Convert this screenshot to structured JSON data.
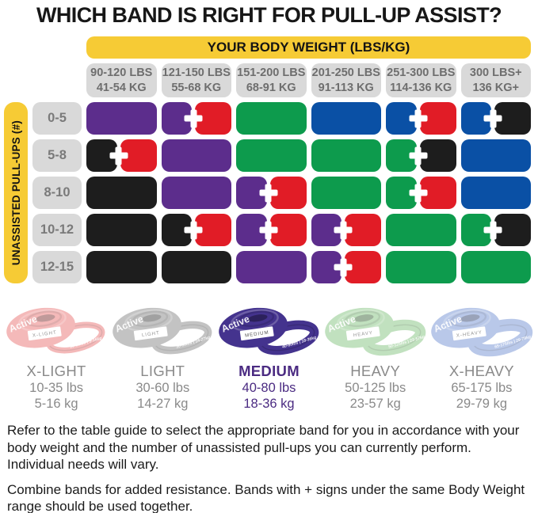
{
  "title": "WHICH BAND IS RIGHT FOR PULL-UP ASSIST?",
  "brand": "Active",
  "table": {
    "header": "YOUR BODY WEIGHT (LBS/KG)",
    "axis_label": "UNASSISTED PULL-UPS (#)",
    "columns": [
      {
        "lbs": "90-120 LBS",
        "kg": "41-54 KG"
      },
      {
        "lbs": "121-150 LBS",
        "kg": "55-68 KG"
      },
      {
        "lbs": "151-200 LBS",
        "kg": "68-91 KG"
      },
      {
        "lbs": "201-250 LBS",
        "kg": "91-113 KG"
      },
      {
        "lbs": "251-300 LBS",
        "kg": "114-136 KG"
      },
      {
        "lbs": "300 LBS+",
        "kg": "136 KG+"
      }
    ],
    "rows": [
      {
        "label": "0-5",
        "cells": [
          [
            "purple"
          ],
          [
            "purple",
            "red"
          ],
          [
            "green"
          ],
          [
            "blue"
          ],
          [
            "blue",
            "red"
          ],
          [
            "blue",
            "black"
          ]
        ]
      },
      {
        "label": "5-8",
        "cells": [
          [
            "black",
            "red"
          ],
          [
            "purple"
          ],
          [
            "green"
          ],
          [
            "green"
          ],
          [
            "green",
            "black"
          ],
          [
            "blue"
          ]
        ]
      },
      {
        "label": "8-10",
        "cells": [
          [
            "black"
          ],
          [
            "purple"
          ],
          [
            "purple",
            "red"
          ],
          [
            "green"
          ],
          [
            "green",
            "red"
          ],
          [
            "blue"
          ]
        ]
      },
      {
        "label": "10-12",
        "cells": [
          [
            "black"
          ],
          [
            "black",
            "red"
          ],
          [
            "purple",
            "red"
          ],
          [
            "purple",
            "red"
          ],
          [
            "green"
          ],
          [
            "green",
            "black"
          ]
        ]
      },
      {
        "label": "12-15",
        "cells": [
          [
            "black"
          ],
          [
            "black"
          ],
          [
            "purple"
          ],
          [
            "purple",
            "red"
          ],
          [
            "green"
          ],
          [
            "green"
          ]
        ]
      }
    ]
  },
  "colors": {
    "bands": {
      "purple": "#5C2D8C",
      "red": "#E11C26",
      "green": "#0D9B4D",
      "blue": "#0A50A5",
      "black": "#1D1D1D"
    },
    "yellow": "#F6CB35",
    "box_gray": "#D9D9D9",
    "gray_text": "#6E6E6E",
    "highlight_text": "#4B2B82"
  },
  "bands": [
    {
      "name": "X-LIGHT",
      "lbs": "10-35 lbs",
      "kg": "5-16 kg",
      "color": "#EE8F8F",
      "tag": "X-LIGHT",
      "band_range": "10-35lbs | 5-16kg",
      "highlight": false
    },
    {
      "name": "LIGHT",
      "lbs": "30-60 lbs",
      "kg": "14-27 kg",
      "color": "#A0A0A0",
      "tag": "LIGHT",
      "band_range": "30-60lbs | 14-27kg",
      "highlight": false
    },
    {
      "name": "MEDIUM",
      "lbs": "40-80 lbs",
      "kg": "18-36 kg",
      "color": "#44338E",
      "tag": "MEDIUM",
      "band_range": "40-80lbs | 18-36kg",
      "highlight": true
    },
    {
      "name": "HEAVY",
      "lbs": "50-125 lbs",
      "kg": "23-57 kg",
      "color": "#9CCF98",
      "tag": "HEAVY",
      "band_range": "50-125lbs | 23-57kg",
      "highlight": false
    },
    {
      "name": "X-HEAVY",
      "lbs": "65-175 lbs",
      "kg": "29-79 kg",
      "color": "#8FA7DC",
      "tag": "X-HEAVY",
      "band_range": "65-175lbs | 29-79kg",
      "highlight": false
    }
  ],
  "footer": {
    "note1": "Refer to the table guide to select the appropriate band for you in accordance with your body weight and the number of unassisted pull-ups you can currently perform. Individual needs will vary.",
    "note2": "Combine bands for added resistance. Bands with + signs under the same Body Weight range should be used together."
  },
  "chart_data": {
    "type": "table",
    "title": "WHICH BAND IS RIGHT FOR PULL-UP ASSIST?",
    "columns_header": "YOUR BODY WEIGHT (LBS/KG)",
    "rows_header": "UNASSISTED PULL-UPS (#)",
    "columns": [
      "90-120 LBS / 41-54 KG",
      "121-150 LBS / 55-68 KG",
      "151-200 LBS / 68-91 KG",
      "201-250 LBS / 91-113 KG",
      "251-300 LBS / 114-136 KG",
      "300 LBS+ / 136 KG+"
    ],
    "rows": [
      "0-5",
      "5-8",
      "8-10",
      "10-12",
      "12-15"
    ],
    "cells": [
      [
        "purple",
        "purple+red",
        "green",
        "blue",
        "blue+red",
        "blue+black"
      ],
      [
        "black+red",
        "purple",
        "green",
        "green",
        "green+black",
        "blue"
      ],
      [
        "black",
        "purple",
        "purple+red",
        "green",
        "green+red",
        "blue"
      ],
      [
        "black",
        "black+red",
        "purple+red",
        "purple+red",
        "green",
        "green+black"
      ],
      [
        "black",
        "black",
        "purple",
        "purple+red",
        "green",
        "green"
      ]
    ],
    "legend": [
      {
        "band": "X-LIGHT",
        "range": "10-35 lbs / 5-16 kg"
      },
      {
        "band": "LIGHT",
        "range": "30-60 lbs / 14-27 kg"
      },
      {
        "band": "MEDIUM",
        "range": "40-80 lbs / 18-36 kg"
      },
      {
        "band": "HEAVY",
        "range": "50-125 lbs / 23-57 kg"
      },
      {
        "band": "X-HEAVY",
        "range": "65-175 lbs / 29-79 kg"
      }
    ]
  }
}
